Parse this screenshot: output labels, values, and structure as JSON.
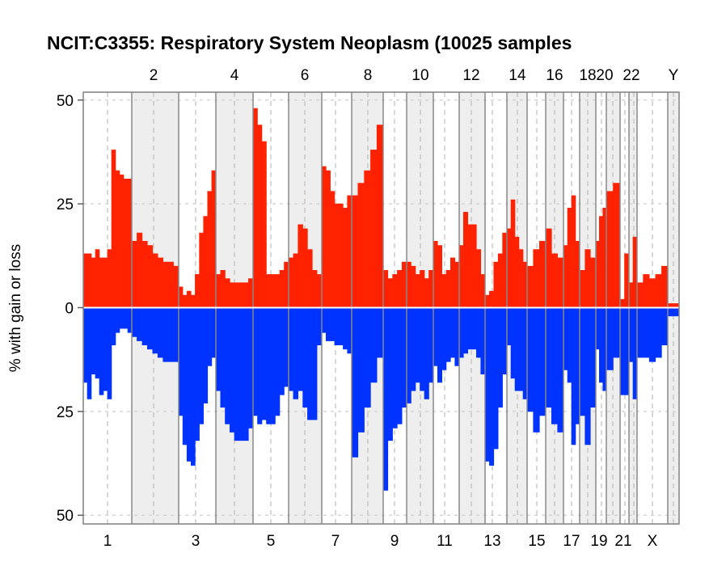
{
  "chart_data": {
    "type": "area",
    "title": "NCIT:C3355: Respiratory System Neoplasm (10025 samples",
    "xlabel": "",
    "ylabel": "% with gain or loss",
    "ylim": [
      -52,
      52
    ],
    "yticks": [
      50,
      25,
      0,
      25,
      50
    ],
    "colors": {
      "gain": "#ff2200",
      "loss": "#0033ff",
      "band": "#eeeeee",
      "frame": "#888888"
    },
    "grid": true,
    "chromosomes": [
      "1",
      "2",
      "3",
      "4",
      "5",
      "6",
      "7",
      "8",
      "9",
      "10",
      "11",
      "12",
      "13",
      "14",
      "15",
      "16",
      "17",
      "18",
      "19",
      "20",
      "21",
      "22",
      "X",
      "Y"
    ],
    "labels_top": [
      "2",
      "4",
      "6",
      "8",
      "10",
      "12",
      "14",
      "16",
      "18",
      "20",
      "22",
      "Y"
    ],
    "labels_bottom": [
      "1",
      "3",
      "5",
      "7",
      "9",
      "11",
      "13",
      "15",
      "17",
      "19",
      "21",
      "X"
    ],
    "series": [
      {
        "name": "gain",
        "profiles": [
          [
            13,
            13,
            12,
            14,
            12,
            12,
            14,
            38,
            33,
            32,
            31,
            31
          ],
          [
            16,
            18,
            16,
            15,
            13,
            12,
            11,
            11,
            10
          ],
          [
            5,
            3,
            4,
            3,
            8,
            18,
            22,
            28,
            33
          ],
          [
            8,
            9,
            7,
            6,
            6,
            6,
            6,
            7
          ],
          [
            48,
            44,
            40,
            8,
            8,
            8,
            9,
            11
          ],
          [
            12,
            13,
            20,
            19,
            14,
            9,
            8
          ],
          [
            34,
            33,
            28,
            25,
            25,
            24,
            27
          ],
          [
            27,
            30,
            33,
            38,
            44
          ],
          [
            9,
            7,
            8,
            9,
            11
          ],
          [
            11,
            10,
            8,
            9,
            7,
            9
          ],
          [
            16,
            15,
            8,
            9,
            12,
            11
          ],
          [
            15,
            23,
            20,
            20,
            14,
            8
          ],
          [
            3,
            4,
            11,
            13,
            18
          ],
          [
            19,
            26,
            17,
            14,
            11
          ],
          [
            10,
            14,
            16
          ],
          [
            19,
            13,
            12
          ],
          [
            15,
            24,
            27,
            16
          ],
          [
            9,
            14,
            12
          ],
          [
            16,
            22,
            24
          ],
          [
            28,
            30
          ],
          [
            2,
            13
          ],
          [
            6,
            17
          ],
          [
            6,
            8,
            7,
            8,
            10
          ],
          [
            1
          ]
        ]
      },
      {
        "name": "loss",
        "profiles": [
          [
            18,
            22,
            16,
            17,
            21,
            20,
            22,
            9,
            6,
            5,
            5,
            6
          ],
          [
            7,
            8,
            9,
            10,
            11,
            12,
            13,
            13,
            13
          ],
          [
            26,
            33,
            37,
            38,
            32,
            28,
            23,
            14,
            12
          ],
          [
            20,
            24,
            28,
            30,
            32,
            32,
            32,
            29
          ],
          [
            26,
            28,
            27,
            28,
            28,
            26,
            21,
            19
          ],
          [
            20,
            22,
            20,
            24,
            27,
            27,
            9
          ],
          [
            6,
            8,
            8,
            9,
            9,
            10,
            11
          ],
          [
            36,
            30,
            24,
            18,
            12
          ],
          [
            44,
            32,
            29,
            28,
            24
          ],
          [
            23,
            20,
            18,
            20,
            22,
            18
          ],
          [
            14,
            18,
            15,
            13,
            12,
            14
          ],
          [
            12,
            11,
            10,
            10,
            12,
            16
          ],
          [
            37,
            38,
            34,
            24,
            16
          ],
          [
            9,
            17,
            20,
            20,
            22
          ],
          [
            25,
            30,
            26
          ],
          [
            24,
            28,
            30
          ],
          [
            15,
            18,
            33,
            28
          ],
          [
            26,
            33,
            24
          ],
          [
            10,
            18,
            20
          ],
          [
            15,
            12
          ],
          [
            21,
            21
          ],
          [
            13,
            22
          ],
          [
            12,
            12,
            13,
            12,
            9
          ],
          [
            2
          ]
        ]
      }
    ]
  }
}
